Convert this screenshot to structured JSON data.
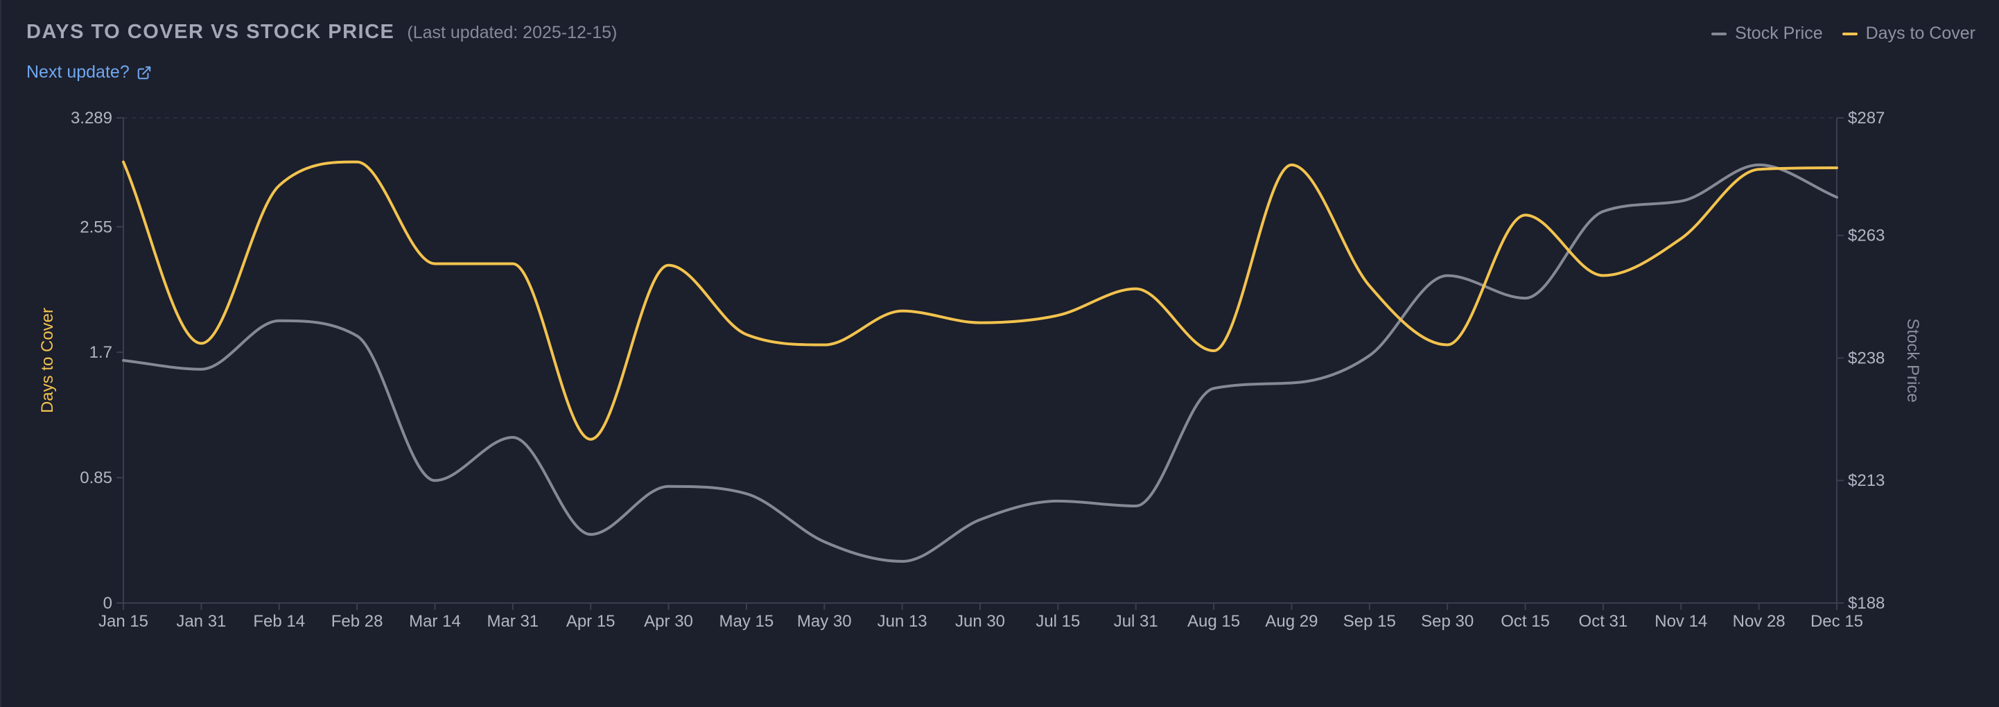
{
  "header": {
    "title": "DAYS TO COVER VS STOCK PRICE",
    "updated": "(Last updated: 2025-12-15)",
    "next_update": "Next update?"
  },
  "legend": {
    "stock_price": "Stock Price",
    "days_to_cover": "Days to Cover"
  },
  "colors": {
    "stock_price": "#858895",
    "days_to_cover": "#f2c34e",
    "link": "#6ea8f0"
  },
  "chart_data": {
    "type": "line",
    "title": "DAYS TO COVER VS STOCK PRICE",
    "xlabel": "",
    "ylabel_left": "Days to Cover",
    "ylabel_right": "Stock Price",
    "categories": [
      "Jan 15",
      "Jan 31",
      "Feb 14",
      "Feb 28",
      "Mar 14",
      "Mar 31",
      "Apr 15",
      "Apr 30",
      "May 15",
      "May 30",
      "Jun 13",
      "Jun 30",
      "Jul 15",
      "Jul 31",
      "Aug 15",
      "Aug 29",
      "Sep 15",
      "Sep 30",
      "Oct 15",
      "Oct 31",
      "Nov 14",
      "Nov 28",
      "Dec 15"
    ],
    "y_left": {
      "min": 0,
      "max": 3.289,
      "ticks": [
        0,
        0.85,
        1.7,
        2.55,
        3.289
      ],
      "tick_labels": [
        "0",
        "0.85",
        "1.7",
        "2.55",
        "3.289"
      ]
    },
    "y_right": {
      "min": 188,
      "max": 287,
      "ticks": [
        188,
        213,
        238,
        263,
        287
      ],
      "tick_labels": [
        "$188",
        "$213",
        "$238",
        "$263",
        "$287"
      ]
    },
    "series": [
      {
        "name": "Days to Cover",
        "axis": "left",
        "values": [
          2.99,
          1.76,
          2.83,
          2.99,
          2.3,
          2.3,
          1.11,
          2.29,
          1.82,
          1.75,
          1.98,
          1.9,
          1.95,
          2.13,
          1.71,
          2.97,
          2.15,
          1.75,
          2.63,
          2.22,
          2.47,
          2.94,
          2.95
        ]
      },
      {
        "name": "Stock Price",
        "axis": "right",
        "values": [
          237.5,
          235.7,
          245.6,
          242.5,
          213.0,
          221.8,
          202.0,
          211.8,
          210.3,
          200.5,
          196.5,
          205.0,
          208.8,
          207.8,
          231.8,
          232.9,
          238.5,
          254.8,
          250.2,
          267.9,
          270.0,
          277.4,
          270.8
        ]
      }
    ]
  }
}
